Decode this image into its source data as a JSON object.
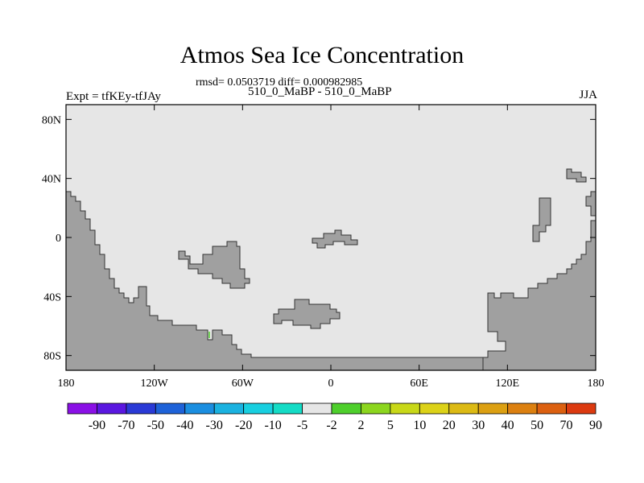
{
  "title": "Atmos Sea Ice Concentration",
  "stats_line": "rmsd= 0.0503719 diff= 0.000982985",
  "subtitle": "510_0_MaBP - 510_0_MaBP",
  "left_label": "Expt = tfKEy-tfJAy",
  "right_label": "JJA",
  "map": {
    "lat_ticks": [
      80,
      40,
      0,
      -40,
      -80
    ],
    "lat_labels": [
      "80N",
      "40N",
      "0",
      "40S",
      "80S"
    ],
    "lon_ticks": [
      -180,
      -120,
      -60,
      0,
      60,
      120,
      180
    ],
    "lon_labels": [
      "180",
      "120W",
      "60W",
      "0",
      "60E",
      "120E",
      "180"
    ],
    "lat_range": [
      -90,
      90
    ],
    "lon_range": [
      -180,
      180
    ],
    "ocean_color": "#e6e6e6",
    "land_color": "#a0a0a0"
  },
  "colorbar": {
    "colors": [
      "#8a10e6",
      "#5a17e0",
      "#2a3ad6",
      "#1e62d8",
      "#1a8ee0",
      "#1ab2e0",
      "#18cfe0",
      "#14dcc6",
      "#e6e6e6",
      "#4ecf2c",
      "#8cd61e",
      "#c8d818",
      "#dcd218",
      "#dcba14",
      "#dca012",
      "#dc8010",
      "#dc6010",
      "#dc3a10"
    ],
    "labels": [
      "-90",
      "-70",
      "-50",
      "-40",
      "-30",
      "-20",
      "-10",
      "-5",
      "-2",
      "2",
      "5",
      "10",
      "20",
      "30",
      "40",
      "50",
      "70",
      "90"
    ]
  }
}
